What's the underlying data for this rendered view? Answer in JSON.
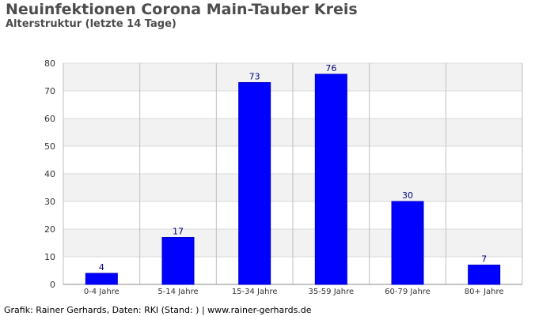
{
  "colors": {
    "bar": "#0000ff",
    "bar_stroke": "#0000c8",
    "value_label": "#00007a",
    "band": "#f2f2f2",
    "grid_line": "#d9d9d9",
    "vertical_grid": "#bfbfbf",
    "axis": "#888888",
    "tick_text": "#333333"
  },
  "chart_data": {
    "type": "bar",
    "title": "Neuinfektionen Corona Main-Tauber Kreis",
    "subtitle": "Alterstruktur (letzte 14 Tage)",
    "categories": [
      "0-4 Jahre",
      "5-14 Jahre",
      "15-34 Jahre",
      "35-59 Jahre",
      "60-79 Jahre",
      "80+ Jahre"
    ],
    "values": [
      4,
      17,
      73,
      76,
      30,
      7
    ],
    "y_ticks": [
      "0",
      "10",
      "20",
      "30",
      "40",
      "50",
      "60",
      "70",
      "80"
    ],
    "ylim": [
      0,
      80
    ],
    "xlabel": "",
    "ylabel": "",
    "grid": true,
    "legend": "none"
  },
  "footer": {
    "text": "Grafik: Rainer Gerhards, Daten: RKI (Stand: ) | www.rainer-gerhards.de"
  }
}
